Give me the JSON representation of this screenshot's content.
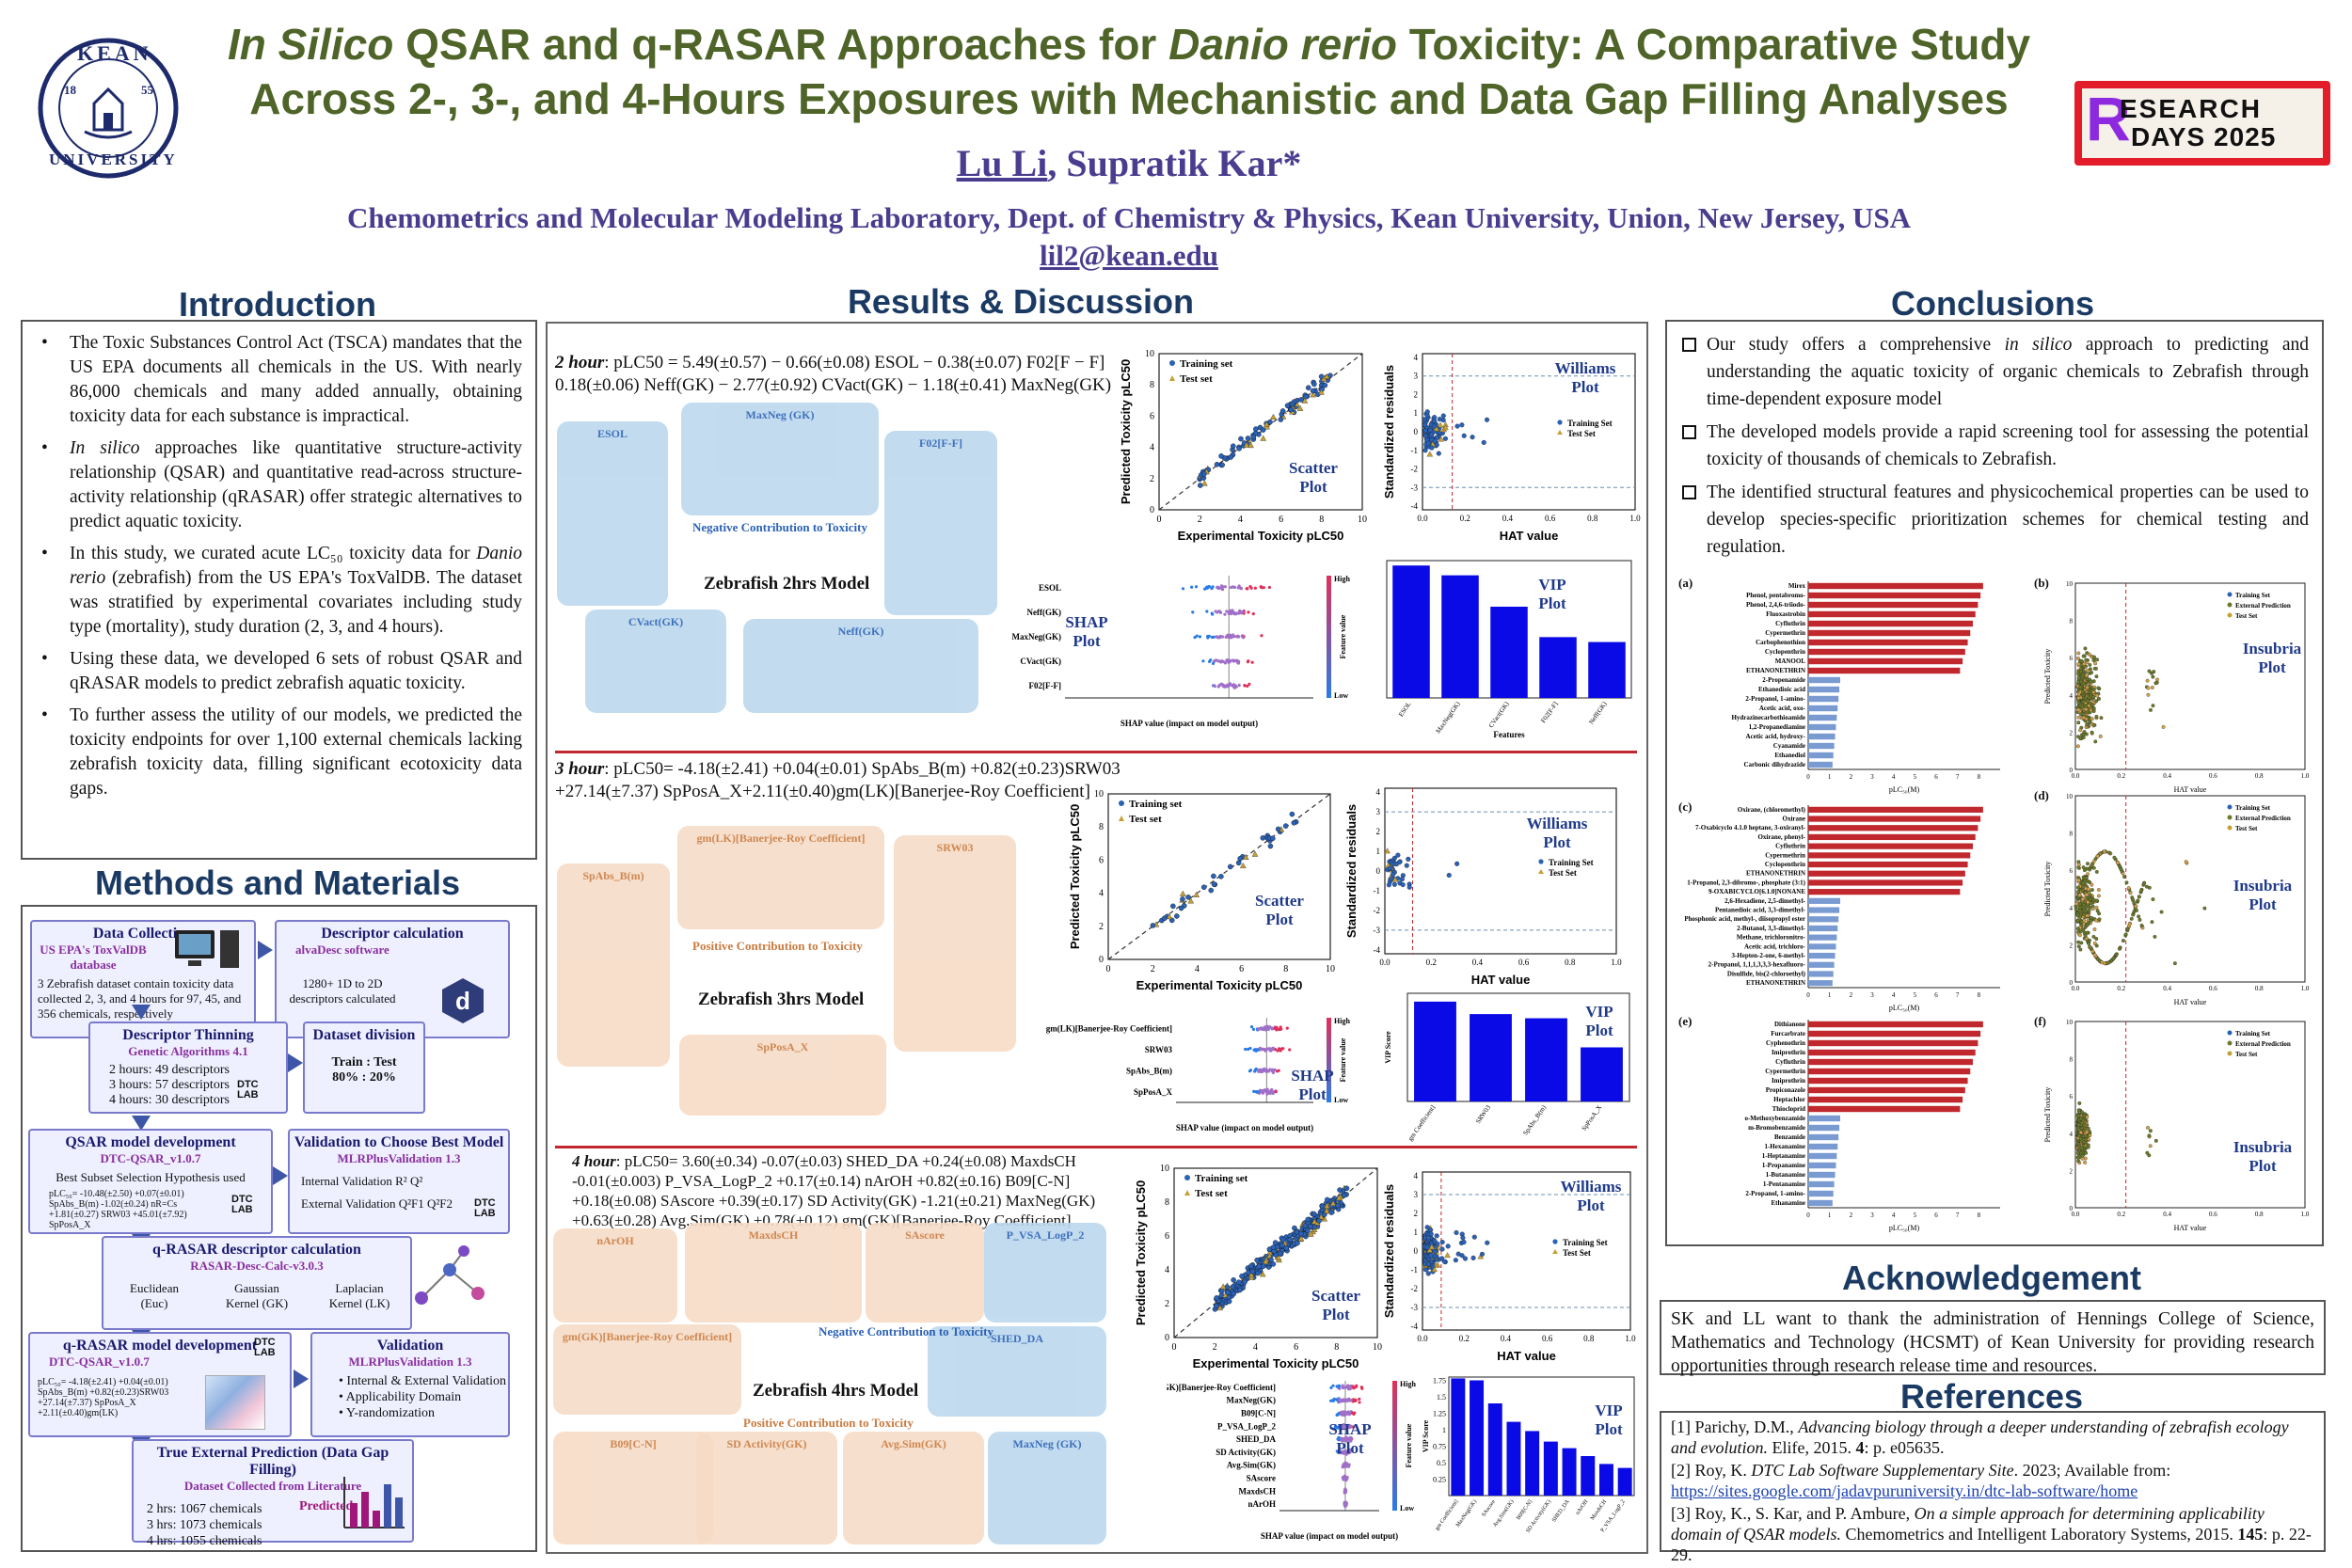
{
  "header": {
    "title_line1_a": "In Silico",
    "title_line1_b": " QSAR and q-RASAR Approaches for ",
    "title_line1_c": "Danio rerio",
    "title_line1_d": " Toxicity: A Comparative Study",
    "title_line2": "Across 2-, 3-, and 4-Hours Exposures with Mechanistic and Data Gap Filling Analyses",
    "author1": "Lu Li",
    "author_sep": ", ",
    "author2": "Supratik Kar*",
    "affiliation": "Chemometrics and Molecular Modeling Laboratory, Dept. of Chemistry & Physics, Kean University, Union, New Jersey, USA",
    "email": "lil2@kean.edu",
    "logo_text_top": "KEAN",
    "logo_text_bottom": "UNIVERSITY",
    "logo_year_a": "18",
    "logo_year_b": "55",
    "badge_line1": "ESEARCH",
    "badge_line2": "DAYS 2025",
    "badge_letter": "R"
  },
  "sections": {
    "intro": "Introduction",
    "methods": "Methods and Materials",
    "results": "Results & Discussion",
    "conclusions": "Conclusions",
    "ack": "Acknowledgement",
    "refs": "References"
  },
  "intro": {
    "b1": "The Toxic Substances Control Act (TSCA) mandates that the US EPA documents all chemicals in the US. With nearly 86,000 chemicals and many added annually, obtaining toxicity data for each substance is impractical.",
    "b2a": "In silico",
    "b2b": " approaches like quantitative structure-activity relationship (QSAR) and quantitative read-across structure-activity relationship (qRASAR) offer strategic alternatives to predict aquatic toxicity.",
    "b3a": "In this study, we curated acute LC₅₀ toxicity data for ",
    "b3b": "Danio rerio",
    "b3c": " (zebrafish) from the US EPA's ToxValDB. The dataset was stratified by experimental covariates including study type (mortality), study duration (2, 3, and 4 hours).",
    "b4": "Using these data, we developed 6 sets of robust QSAR and qRASAR models to predict zebrafish aquatic toxicity.",
    "b5": "To further assess the utility of our models, we predicted the toxicity endpoints for over 1,100 external chemicals lacking zebrafish toxicity data, filling significant ecotoxicity data gaps."
  },
  "methods": {
    "dc_h": "Data Collection",
    "dc_sub": "US EPA's ToxValDB database",
    "dc_body": "3 Zebrafish dataset contain toxicity data collected 2, 3, and 4 hours for 97, 45, and 356 chemicals, respectively",
    "desc_h": "Descriptor calculation",
    "desc_sub": "alvaDesc software",
    "desc_body": "1280+ 1D to 2D descriptors calculated",
    "thin_h": "Descriptor Thinning",
    "thin_sub": "Genetic Algorithms 4.1",
    "thin_l1": "2 hours: 49 descriptors",
    "thin_l2": "3 hours: 57 descriptors",
    "thin_l3": "4 hours: 30 descriptors",
    "div_h": "Dataset division",
    "div_body": "Train : Test",
    "div_body2": "80% : 20%",
    "qsar_h": "QSAR model development",
    "qsar_sub": "DTC-QSAR_v1.0.7",
    "qsar_body": "Best Subset Selection Hypothesis used",
    "qsar_eq": "pLC₅₀= -10.48(±2.50) +0.07(±0.01) SpAbs_B(m) -1.02(±0.24) nR=Cs +1.81(±0.27) SRW03 +45.01(±7.92) SpPosA_X",
    "val_h": "Validation to Choose Best Model",
    "val_sub": "MLRPlusValidation 1.3",
    "val_l1": "Internal Validation  R²  Q²",
    "val_l2": "External Validation Q²F1  Q²F2",
    "rdesc_h": "q-RASAR descriptor calculation",
    "rdesc_sub": "RASAR-Desc-Calc-v3.0.3",
    "rdesc_k1": "Euclidean (Euc)",
    "rdesc_k2": "Gaussian Kernel (GK)",
    "rdesc_k3": "Laplacian Kernel (LK)",
    "rmodel_h": "q-RASAR model development",
    "rmodel_sub": "DTC-QSAR_v1.0.7",
    "rmodel_eq": "pLC₅₀= -4.18(±2.41) +0.04(±0.01) SpAbs_B(m) +0.82(±0.23)SRW03 +27.14(±7.37) SpPosA_X +2.11(±0.40)gm(LK)",
    "rval_h": "Validation",
    "rval_sub": "MLRPlusValidation 1.3",
    "rval_l1": "Internal & External Validation",
    "rval_l2": "Applicability Domain",
    "rval_l3": "Y-randomization",
    "ext_h": "True External Prediction (Data Gap Filling)",
    "ext_sub": "Dataset Collected from Literature",
    "ext_l1": "2 hrs: 1067 chemicals",
    "ext_l2": "3 hrs: 1073 chemicals",
    "ext_l3": "4 hrs: 1055 chemicals",
    "ext_pred": "Predicted",
    "dtc": "DTC",
    "lab": "LAB",
    "d_letter": "d"
  },
  "results": {
    "eq2_label": "2 hour",
    "eq2": ": pLC50 = 5.49(±0.57)  − 0.66(±0.08) ESOL − 0.38(±0.07) F02[F − F] 0.18(±0.06) Neff(GK) − 2.77(±0.92) CVact(GK) − 1.18(±0.41) MaxNeg(GK)",
    "eq3_label": "3 hour",
    "eq3": ": pLC50= -4.18(±2.41)  +0.04(±0.01) SpAbs_B(m) +0.82(±0.23)SRW03 +27.14(±7.37) SpPosA_X+2.11(±0.40)gm(LK)[Banerjee-Roy Coefficient]",
    "eq4_label": "4 hour",
    "eq4": ": pLC50= 3.60(±0.34) -0.07(±0.03) SHED_DA +0.24(±0.08) MaxdsCH -0.01(±0.003) P_VSA_LogP_2 +0.17(±0.14) nArOH +0.82(±0.16) B09[C-N] +0.18(±0.08) SAscore +0.39(±0.17) SD Activity(GK) -1.21(±0.21) MaxNeg(GK) +0.63(±0.28) Avg.Sim(GK) +0.78(±0.12) gm(GK)[Banerjee-Roy Coefficient]",
    "m2": "Zebrafish 2hrs Model",
    "m3": "Zebrafish 3hrs Model",
    "m4": "Zebrafish 4hrs Model",
    "neg": "Negative Contribution to Toxicity",
    "pos": "Positive Contribution to Toxicity",
    "b2_esol": "ESOL",
    "b2_maxneg": "MaxNeg (GK)",
    "b2_f02": "F02[F-F]",
    "b2_cvact": "CVact(GK)",
    "b2_neff": "Neff(GK)",
    "b3_gm": "gm(LK)[Banerjee-Roy Coefficient]",
    "b3_spabs": "SpAbs_B(m)",
    "b3_srw": "SRW03",
    "b3_sppos": "SpPosA_X",
    "b4_narOH": "nArOH",
    "b4_maxdsch": "MaxdsCH",
    "b4_sascore": "SAscore",
    "b4_pvsa": "P_VSA_LogP_2",
    "b4_gm": "gm(GK)[Banerjee-Roy Coefficient]",
    "b4_shed": "SHED_DA",
    "b4_b09": "B09[C-N]",
    "b4_sd": "SD Activity(GK)",
    "b4_avg": "Avg.Sim(GK)",
    "b4_maxneg": "MaxNeg (GK)",
    "scatter_lbl": "Scatter Plot",
    "williams_lbl": "Williams Plot",
    "shap_lbl": "SHAP Plot",
    "vip_lbl": "VIP Plot",
    "legend_train": "Training set",
    "legend_test": "Test set",
    "legend_train2": "Training Set",
    "legend_test2": "Test Set",
    "x_scatter": "Experimental Toxicity pLC50",
    "y_scatter": "Predicted Toxicity pLC50",
    "x_williams": "HAT value",
    "y_williams": "Standardized residuals",
    "x_shap": "SHAP value (impact on model output)",
    "y_shap_high": "High",
    "y_shap_low": "Low",
    "y_shap": "Feature value",
    "x_vip": "Features",
    "y_vip": "VIP Score",
    "shap2_features": [
      "ESOL",
      "Neff(GK)",
      "MaxNeg(GK)",
      "CVact(GK)",
      "F02[F-F]"
    ],
    "shap3_features": [
      "gm(LK)[Banerjee-Roy Coefficient]",
      "SRW03",
      "SpAbs_B(m)",
      "SpPosA_X"
    ],
    "vip2_features": [
      "ESOL",
      "MaxNeg(GK)",
      "CVact(GK)",
      "F02[F-F]",
      "Neff(GK)"
    ],
    "vip3_features": [
      "gm Coefficient]",
      "SRW03",
      "SpAbs_B(m)",
      "SpPosA_X"
    ]
  },
  "chart_data": [
    {
      "type": "bar",
      "title": "VIP Plot (2 hour)",
      "categories": [
        "ESOL",
        "MaxNeg(GK)",
        "CVact(GK)",
        "F02[F-F]",
        "Neff(GK)"
      ],
      "values": [
        1.35,
        1.25,
        0.93,
        0.62,
        0.57
      ],
      "xlabel": "Features",
      "ylabel": "",
      "ylim": [
        0,
        1.4
      ]
    },
    {
      "type": "bar",
      "title": "VIP Plot (3 hour)",
      "categories": [
        "gm Coefficient]",
        "SRW03",
        "SpAbs_B(m)",
        "SpPosA_X"
      ],
      "values": [
        1.2,
        1.05,
        1.0,
        0.65
      ],
      "xlabel": "",
      "ylabel": "VIP Score",
      "ylim": [
        0,
        1.3
      ]
    },
    {
      "type": "bar",
      "title": "VIP Plot (4 hour)",
      "categories": [
        "gm Coefficient]",
        "MaxNeg(GK)",
        "SAscore",
        "Avg.Sim(GK)",
        "B09[C-N]",
        "SD Activity(GK)",
        "SHED_DA",
        "nArOH",
        "MaxdsCH",
        "P_VSA_LogP_2"
      ],
      "values": [
        1.78,
        1.75,
        1.4,
        1.12,
        0.98,
        0.82,
        0.72,
        0.6,
        0.48,
        0.42
      ],
      "xlabel": "",
      "ylabel": "VIP Score",
      "ylim": [
        0,
        1.8
      ]
    }
  ],
  "conclusions": {
    "c1a": "Our study offers a comprehensive ",
    "c1b": "in silico",
    "c1c": " approach to predicting and understanding the aquatic toxicity of organic chemicals to Zebrafish through time-dependent exposure model",
    "c2": "The developed models provide a rapid screening tool for assessing the potential toxicity of thousands of chemicals to Zebrafish.",
    "c3": "The identified structural features and physicochemical properties can be used to develop species-specific prioritization schemes for chemical testing and regulation.",
    "insubria": "Insubria Plot",
    "pa": "(a)",
    "pb": "(b)",
    "pc": "(c)",
    "pd": "(d)",
    "pe": "(e)",
    "pf": "(f)",
    "leg1": "Training Set",
    "leg2": "External Prediction",
    "leg3": "Test Set",
    "x_bar": "pLC₅₀(M)",
    "x_hat": "HAT value",
    "y_pred": "Predicted Toxicity",
    "a_labels": [
      "Mirex",
      "Phenol, pentabromo-",
      "Phenol, 2,4,6-triiodo-",
      "Fluoxastrobin",
      "Cyfluthrin",
      "Cypermethrin",
      "Carbophenothion",
      "Cyclopenthrin",
      "MANOOL",
      "ETHANONETHRIN",
      "2-Propenamide",
      "Ethanedioic acid",
      "2-Propanol, 1-amino-",
      "Acetic acid, oxo-",
      "Hydrazinecarbothioamide",
      "1,2-Propanediamine",
      "Acetic acid, hydroxy-",
      "Cyanamide",
      "Ethanediol",
      "Carbonic dihydrazide"
    ],
    "c_labels": [
      "Oxirane, (chloromethyl)",
      "Oxirane",
      "7-Oxabicyclo 4.1.0 heptane, 3-oxiranyl-",
      "Oxirane, phenyl-",
      "Cyfluthrin",
      "Cypermethrin",
      "Cyclopenthrin",
      "ETHANONETHRIN",
      "1-Propanol, 2,3-dibromo-, phosphate (3:1)",
      "9-OXABICYCLO[6.1.0]NONANE",
      "2,6-Hexadiene, 2,5-dimethyl-",
      "Pentanedioic acid, 3,3-dimethyl-",
      "Phosphonic acid, methyl-, diisopropyl ester",
      "2-Butanol, 3,3-dimethyl-",
      "Methane, trichloronitro-",
      "Acetic acid, trichloro-",
      "3-Hepten-2-one, 6-methyl-",
      "2-Propanol, 1,1,1,3,3,3-hexafluoro-",
      "Disulfide, bis(2-chloroethyl)",
      "ETHANONETHRIN"
    ],
    "e_labels": [
      "Dithianone",
      "Furcarbrate",
      "Cyphenothrin",
      "Imiprothrin",
      "Cyfluthrin",
      "Cypermethrin",
      "Imiprothrin",
      "Propiconazole",
      "Heptachlor",
      "Thiocloprid",
      "o-Methoxybenzamide",
      "m-Bromobenzamide",
      "Benzamide",
      "1-Hexanamine",
      "1-Heptanamine",
      "1-Propanamine",
      "1-Butanamine",
      "1-Pentanamine",
      "2-Propanol, 1-amino-",
      "Ethanamine"
    ]
  },
  "ack": {
    "text": "SK and LL want to thank the administration of Hennings College of Science, Mathematics and Technology (HCSMT) of Kean University for providing research opportunities through research release time and resources."
  },
  "refs": {
    "r1a": "[1] Parichy, D.M., ",
    "r1b": "Advancing biology through a deeper understanding of zebrafish ecology and evolution.",
    "r1c": " Elife, 2015. ",
    "r1d": "4",
    "r1e": ": p. e05635.",
    "r2a": "[2] Roy, K. ",
    "r2b": "DTC Lab Software Supplementary Site",
    "r2c": ". 2023; Available from:",
    "r2link": "https://sites.google.com/jadavpuruniversity.in/dtc-lab-software/home",
    "r3a": "[3] Roy, K., S. Kar, and P. Ambure, ",
    "r3b": "On a simple approach for determining applicability domain of QSAR models.",
    "r3c": " Chemometrics and Intelligent Laboratory Systems, 2015. ",
    "r3d": "145",
    "r3e": ": p. 22-29."
  },
  "colors": {
    "title": "#4f6428",
    "authors": "#4a3d8f",
    "section": "#1b3a63",
    "train": "#2b62b5",
    "test": "#c7a035",
    "vip_bar": "#0a0ae6",
    "bar_red": "#c0282d",
    "bar_blue": "#7a9bd1"
  }
}
